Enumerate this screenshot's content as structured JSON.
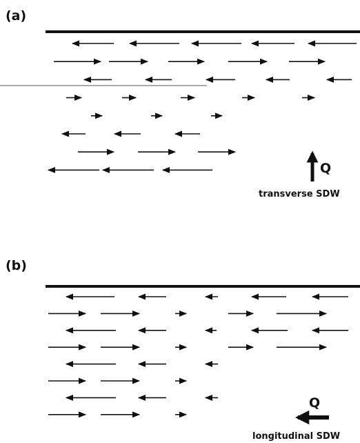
{
  "panels": [
    {
      "label": "(a)",
      "caption": "transverse SDW",
      "q_label": "Q",
      "q_direction": "up",
      "surface_arrow_rows": [
        {
          "dir": "left",
          "arrows": [
            {
              "x": 105,
              "len": 60
            },
            {
              "x": 188,
              "len": 72
            },
            {
              "x": 278,
              "len": 72
            },
            {
              "x": 365,
              "len": 62
            },
            {
              "x": 447,
              "len": 70
            }
          ]
        },
        {
          "dir": "right",
          "arrows": [
            {
              "x": 78,
              "len": 68
            },
            {
              "x": 158,
              "len": 56
            },
            {
              "x": 244,
              "len": 52
            },
            {
              "x": 331,
              "len": 56
            },
            {
              "x": 419,
              "len": 52
            }
          ]
        },
        {
          "dir": "left",
          "arrows": [
            {
              "x": 122,
              "len": 40
            },
            {
              "x": 211,
              "len": 38
            },
            {
              "x": 299,
              "len": 42
            },
            {
              "x": 386,
              "len": 34
            },
            {
              "x": 474,
              "len": 36
            }
          ]
        },
        {
          "dir": "right",
          "arrows": [
            {
              "x": 96,
              "len": 22
            },
            {
              "x": 177,
              "len": 20
            },
            {
              "x": 262,
              "len": 20
            },
            {
              "x": 351,
              "len": 18
            },
            {
              "x": 438,
              "len": 18
            }
          ]
        },
        {
          "dir": "right",
          "arrows": [
            {
              "x": 132,
              "len": 16
            },
            {
              "x": 219,
              "len": 16
            },
            {
              "x": 306,
              "len": 16
            }
          ]
        },
        {
          "dir": "left",
          "arrows": [
            {
              "x": 90,
              "len": 34
            },
            {
              "x": 166,
              "len": 38
            },
            {
              "x": 254,
              "len": 36
            }
          ]
        },
        {
          "dir": "right",
          "arrows": [
            {
              "x": 113,
              "len": 52
            },
            {
              "x": 200,
              "len": 54
            },
            {
              "x": 287,
              "len": 54
            }
          ]
        },
        {
          "dir": "left",
          "arrows": [
            {
              "x": 70,
              "len": 74
            },
            {
              "x": 149,
              "len": 74
            },
            {
              "x": 236,
              "len": 72
            }
          ]
        }
      ]
    },
    {
      "label": "(b)",
      "caption": "longitudinal SDW",
      "q_label": "Q",
      "q_direction": "left",
      "surface_arrow_rows": [
        {
          "dir": "left",
          "arrows": [
            {
              "x": 96,
              "len": 70
            },
            {
              "x": 201,
              "len": 40
            },
            {
              "x": 298,
              "len": 18
            },
            {
              "x": 365,
              "len": 50
            },
            {
              "x": 453,
              "len": 52
            }
          ]
        },
        {
          "dir": "right",
          "arrows": [
            {
              "x": 70,
              "len": 54
            },
            {
              "x": 146,
              "len": 56
            },
            {
              "x": 254,
              "len": 16
            },
            {
              "x": 331,
              "len": 36
            },
            {
              "x": 401,
              "len": 72
            }
          ]
        },
        {
          "dir": "left",
          "arrows": [
            {
              "x": 96,
              "len": 72
            },
            {
              "x": 201,
              "len": 40
            },
            {
              "x": 298,
              "len": 16
            },
            {
              "x": 365,
              "len": 52
            },
            {
              "x": 453,
              "len": 52
            }
          ]
        },
        {
          "dir": "right",
          "arrows": [
            {
              "x": 70,
              "len": 54
            },
            {
              "x": 146,
              "len": 56
            },
            {
              "x": 254,
              "len": 16
            },
            {
              "x": 331,
              "len": 36
            },
            {
              "x": 401,
              "len": 72
            }
          ]
        },
        {
          "dir": "left",
          "arrows": [
            {
              "x": 96,
              "len": 72
            },
            {
              "x": 201,
              "len": 40
            },
            {
              "x": 298,
              "len": 18
            }
          ]
        },
        {
          "dir": "right",
          "arrows": [
            {
              "x": 70,
              "len": 54
            },
            {
              "x": 146,
              "len": 56
            },
            {
              "x": 254,
              "len": 16
            }
          ]
        },
        {
          "dir": "left",
          "arrows": [
            {
              "x": 96,
              "len": 72
            },
            {
              "x": 201,
              "len": 40
            },
            {
              "x": 298,
              "len": 18
            }
          ]
        },
        {
          "dir": "right",
          "arrows": [
            {
              "x": 70,
              "len": 54
            },
            {
              "x": 146,
              "len": 56
            },
            {
              "x": 254,
              "len": 16
            }
          ]
        }
      ]
    }
  ]
}
